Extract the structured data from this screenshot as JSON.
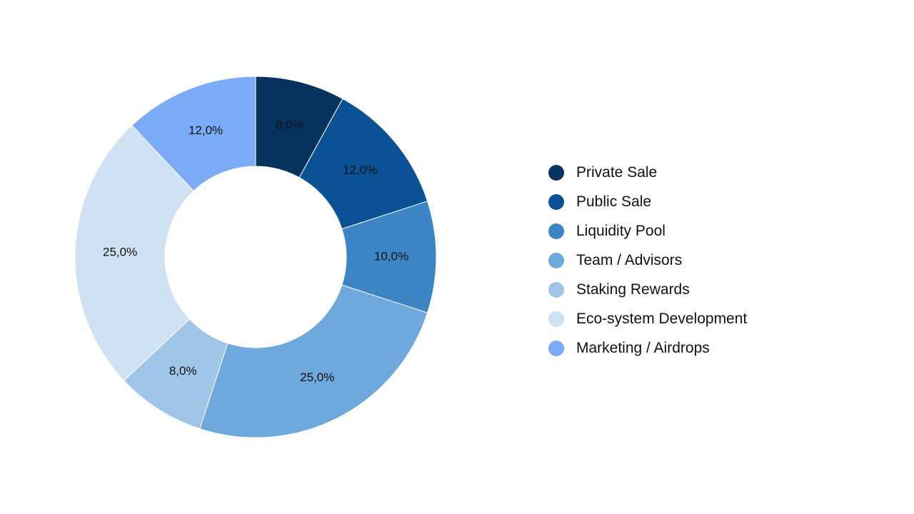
{
  "chart_data": {
    "type": "pie",
    "donut": true,
    "legend_position": "right",
    "slices": [
      {
        "label": "Private Sale",
        "value": 8.0,
        "display": "8,0%",
        "color": "#06345f"
      },
      {
        "label": "Public Sale",
        "value": 12.0,
        "display": "12,0%",
        "color": "#0b5196"
      },
      {
        "label": "Liquidity Pool",
        "value": 10.0,
        "display": "10,0%",
        "color": "#3d86c6"
      },
      {
        "label": "Team / Advisors",
        "value": 25.0,
        "display": "25,0%",
        "color": "#6fa8dc"
      },
      {
        "label": "Staking Rewards",
        "value": 8.0,
        "display": "8,0%",
        "color": "#9fc5e8"
      },
      {
        "label": "Eco-system Development",
        "value": 25.0,
        "display": "25,0%",
        "color": "#cfe2f3"
      },
      {
        "label": "Marketing / Airdrops",
        "value": 12.0,
        "display": "12,0%",
        "color": "#7baaf7"
      }
    ]
  }
}
